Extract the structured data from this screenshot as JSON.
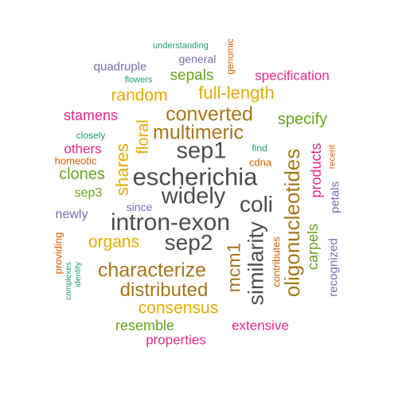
{
  "colors": {
    "gray": "#4d4d4d",
    "brown": "#a6761d",
    "gold": "#e6ab02",
    "green": "#66a61e",
    "magenta": "#e7298a",
    "purple": "#7570b3",
    "orange": "#d95f02",
    "teal": "#1b9e77"
  },
  "words": [
    "escherichia",
    "intron-exon",
    "widely",
    "sep1",
    "sep2",
    "coli",
    "similarity",
    "oligonucleotides",
    "characterize",
    "multimeric",
    "converted",
    "distributed",
    "mcm1",
    "full-length",
    "shares",
    "random",
    "consensus",
    "organs",
    "specify",
    "clones",
    "floral",
    "sepals",
    "carpels",
    "products",
    "stamens",
    "resemble",
    "specification",
    "others",
    "extensive",
    "properties",
    "newly",
    "sep3",
    "recognized",
    "petals",
    "general",
    "quadruple",
    "contributes",
    "since",
    "genomic",
    "providing",
    "cdna",
    "homeotic",
    "find",
    "recent",
    "closely",
    "flowers",
    "understanding",
    "complexes",
    "identity"
  ]
}
